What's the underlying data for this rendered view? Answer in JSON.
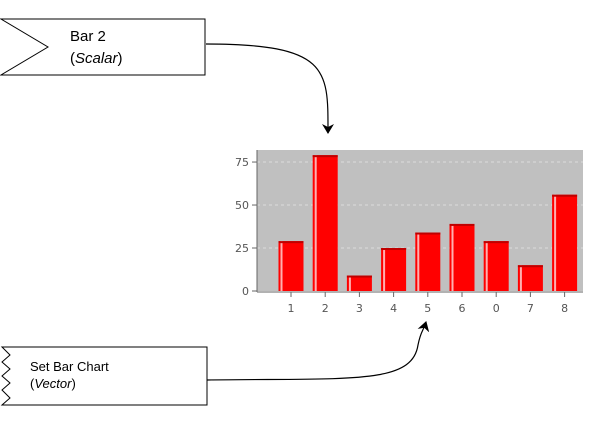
{
  "callouts": {
    "bar2": {
      "title": "Bar 2",
      "type_label": "Scalar"
    },
    "set_bar_chart": {
      "title": "Set Bar Chart",
      "type_label": "Vector"
    }
  },
  "colors": {
    "plot_background": "#c0c0c0",
    "bar_fill": "#ff0000",
    "bar_highlight": "#ffb0b0",
    "bar_shadow": "#c00000",
    "axis": "#666666",
    "tick_label": "#555555",
    "callout_stroke": "#000000",
    "arrow": "#000000"
  },
  "icons": {
    "arrowhead": "arrowhead-icon"
  },
  "chart_data": {
    "type": "bar",
    "categories": [
      "1",
      "2",
      "3",
      "4",
      "5",
      "6",
      "0",
      "7",
      "8"
    ],
    "values": [
      29,
      79,
      9,
      25,
      34,
      39,
      29,
      15,
      56
    ],
    "ylim": [
      0,
      82
    ],
    "yticks": [
      0,
      25,
      50,
      75
    ],
    "grid": true,
    "legend": "none",
    "title": "",
    "xlabel": "",
    "ylabel": ""
  }
}
